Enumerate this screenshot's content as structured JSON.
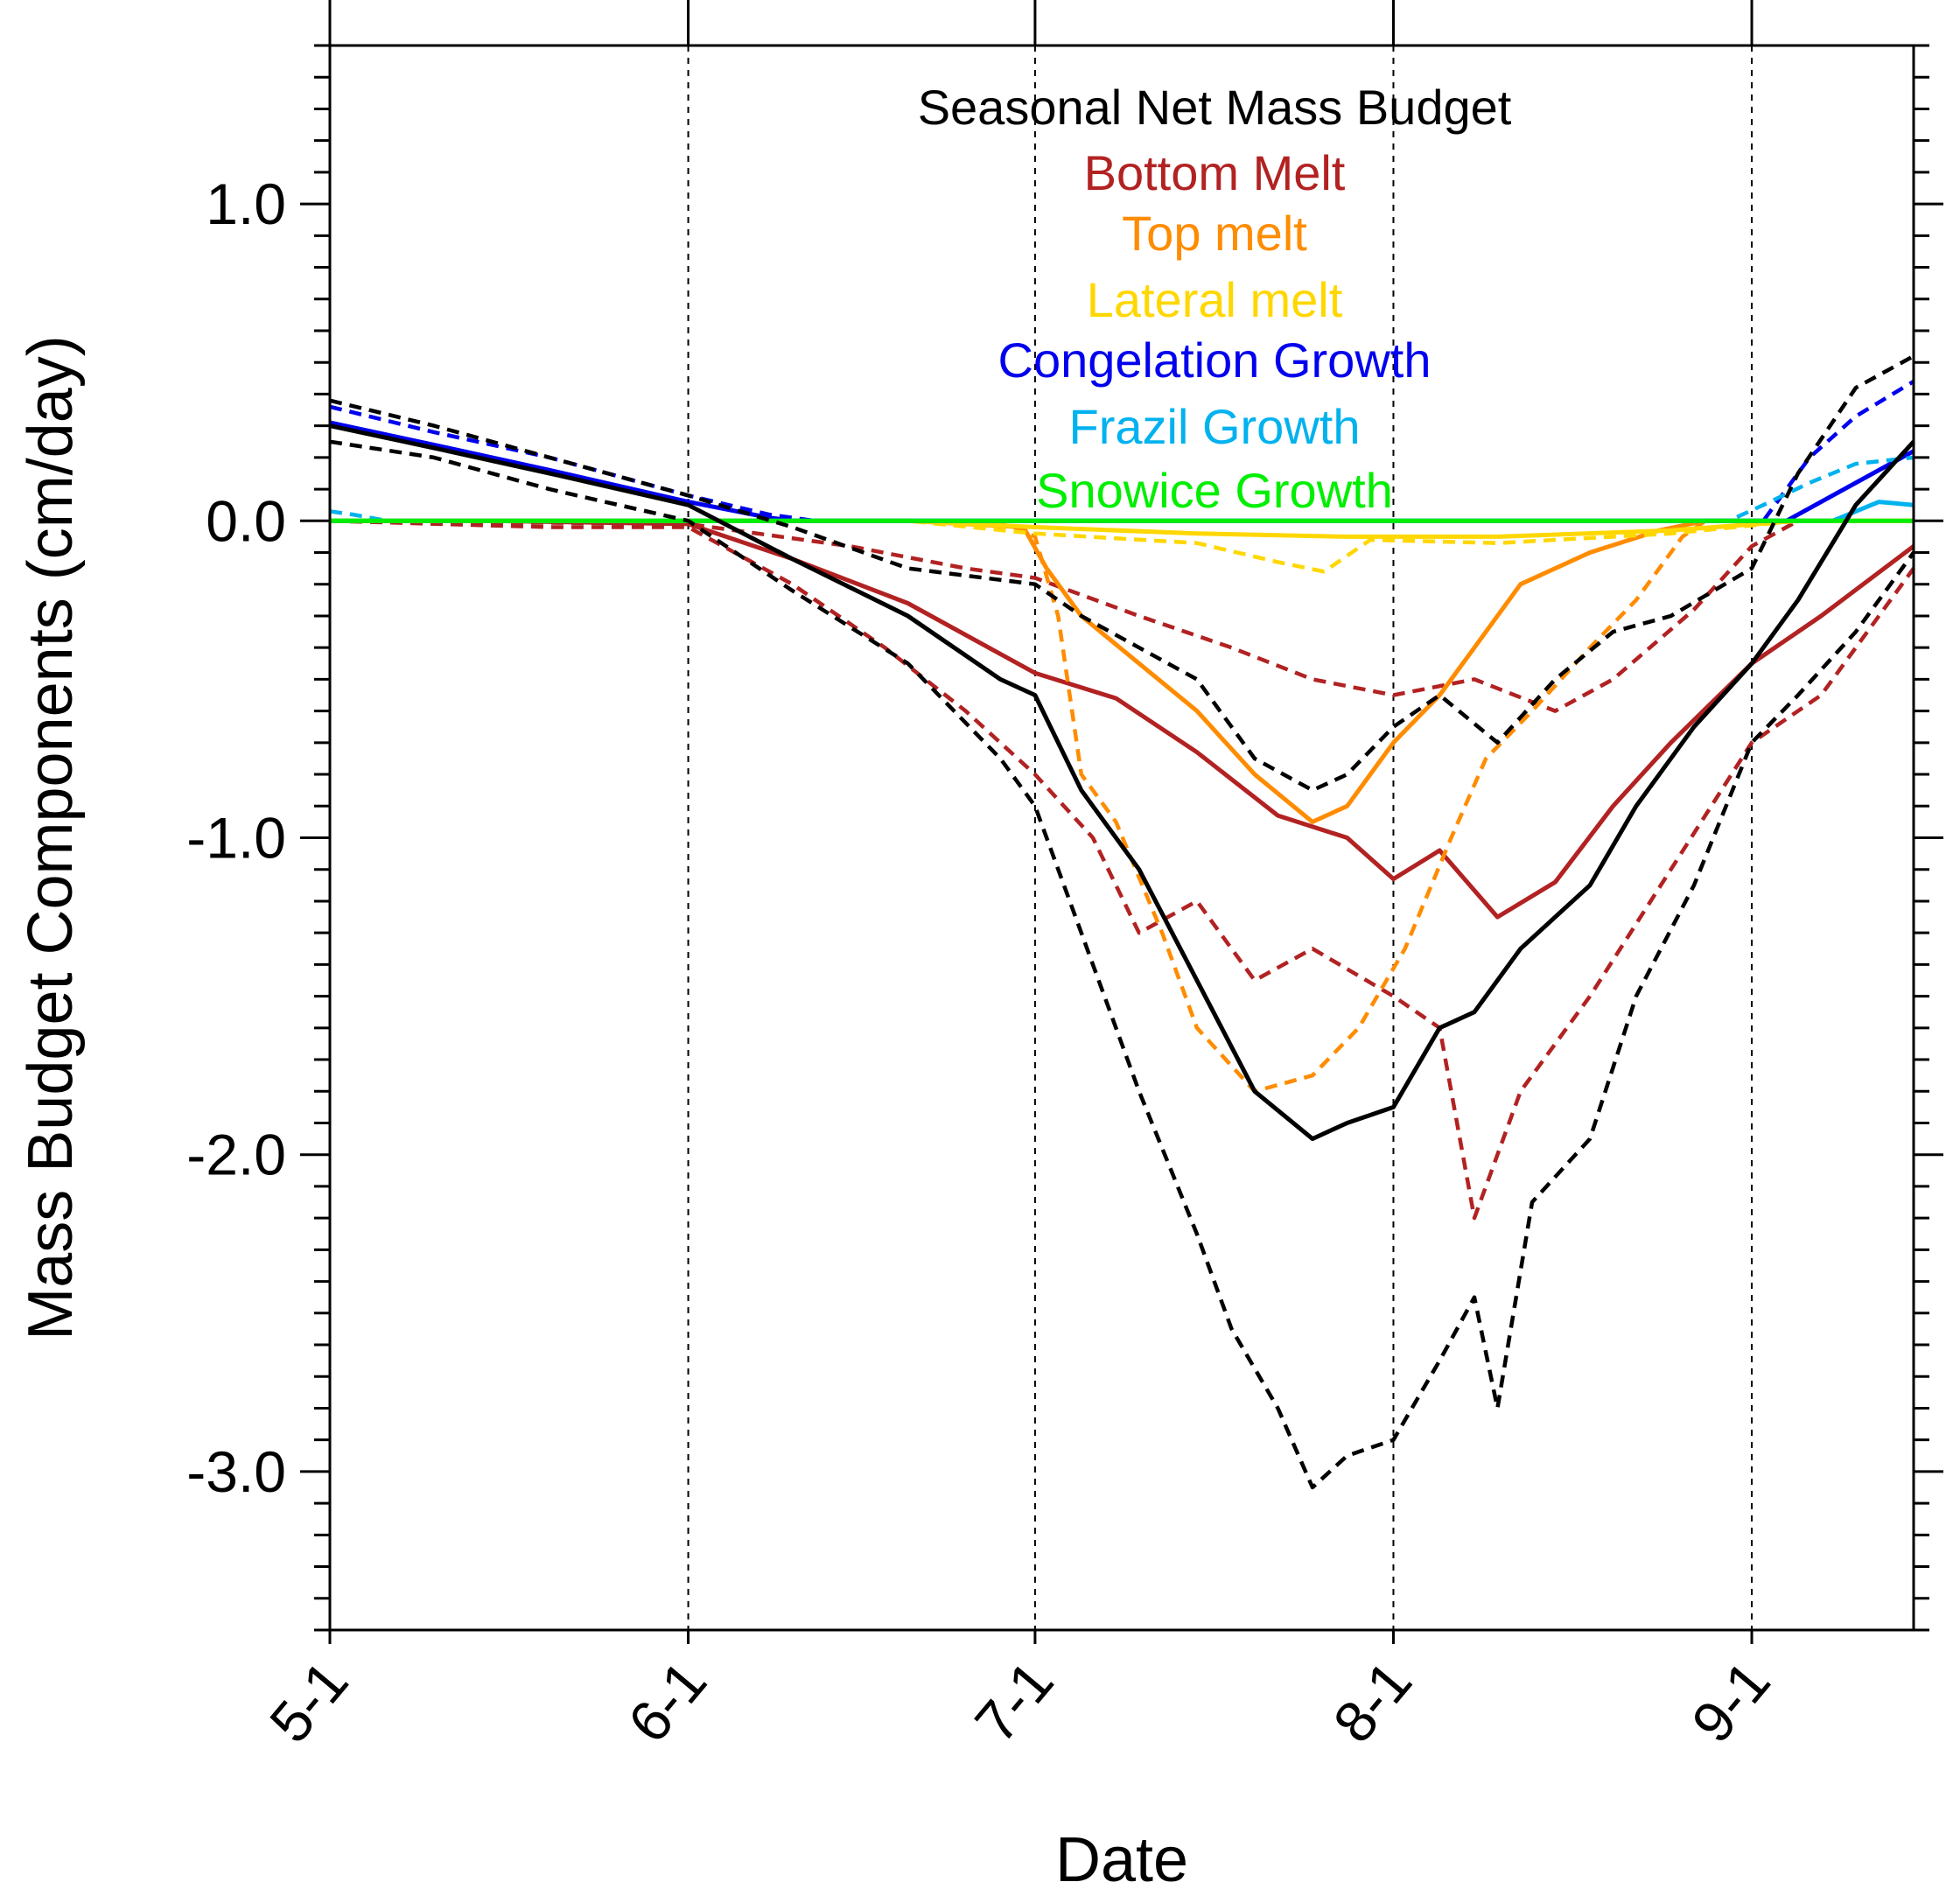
{
  "chart_data": {
    "type": "line",
    "title": "",
    "xlabel": "Date",
    "ylabel": "Mass Budget Components (cm/day)",
    "xlim": [
      "05-01",
      "09-15"
    ],
    "ylim": [
      -3.5,
      1.5
    ],
    "x_tick_labels": [
      "5-1",
      "6-1",
      "7-1",
      "8-1",
      "9-1"
    ],
    "y_tick_labels": [
      "1.0",
      "0.0",
      "-1.0",
      "-2.0",
      "-3.0"
    ],
    "y_tick_values": [
      1.0,
      0.0,
      -1.0,
      -2.0,
      -3.0
    ],
    "grid": "vertical dashed lines at month starts",
    "legend_position": "top-center",
    "legend": [
      {
        "name": "Seasonal Net Mass Budget",
        "color": "#000000"
      },
      {
        "name": "Bottom Melt",
        "color": "#b22222"
      },
      {
        "name": "Top melt",
        "color": "#ff8c00"
      },
      {
        "name": "Lateral melt",
        "color": "#ffd700"
      },
      {
        "name": "Congelation Growth",
        "color": "#0000ee"
      },
      {
        "name": "Frazil Growth",
        "color": "#00b2ee"
      },
      {
        "name": "Snowice Growth",
        "color": "#00ee00"
      }
    ],
    "series": [
      {
        "color": "#b22222",
        "style": "solid",
        "points": [
          [
            "05-01",
            0
          ],
          [
            "05-15",
            0
          ],
          [
            "06-01",
            -0.01
          ],
          [
            "06-10",
            -0.12
          ],
          [
            "06-20",
            -0.26
          ],
          [
            "07-01",
            -0.48
          ],
          [
            "07-08",
            -0.56
          ],
          [
            "07-15",
            -0.73
          ],
          [
            "07-22",
            -0.93
          ],
          [
            "07-28",
            -1.0
          ],
          [
            "08-01",
            -1.13
          ],
          [
            "08-05",
            -1.04
          ],
          [
            "08-10",
            -1.25
          ],
          [
            "08-15",
            -1.14
          ],
          [
            "08-20",
            -0.9
          ],
          [
            "08-25",
            -0.7
          ],
          [
            "09-01",
            -0.45
          ],
          [
            "09-07",
            -0.3
          ],
          [
            "09-15",
            -0.08
          ]
        ]
      },
      {
        "color": "#b22222",
        "style": "dashed",
        "points": [
          [
            "05-01",
            0
          ],
          [
            "05-20",
            -0.02
          ],
          [
            "06-01",
            -0.02
          ],
          [
            "06-10",
            -0.2
          ],
          [
            "06-18",
            -0.4
          ],
          [
            "06-25",
            -0.6
          ],
          [
            "07-01",
            -0.8
          ],
          [
            "07-06",
            -1.0
          ],
          [
            "07-10",
            -1.3
          ],
          [
            "07-15",
            -1.2
          ],
          [
            "07-20",
            -1.45
          ],
          [
            "07-25",
            -1.35
          ],
          [
            "08-01",
            -1.5
          ],
          [
            "08-05",
            -1.6
          ],
          [
            "08-08",
            -2.2
          ],
          [
            "08-12",
            -1.8
          ],
          [
            "08-18",
            -1.5
          ],
          [
            "08-25",
            -1.1
          ],
          [
            "09-01",
            -0.7
          ],
          [
            "09-07",
            -0.55
          ],
          [
            "09-15",
            -0.15
          ]
        ]
      },
      {
        "color": "#b22222",
        "style": "dashed",
        "points": [
          [
            "05-01",
            0
          ],
          [
            "06-01",
            -0.01
          ],
          [
            "06-15",
            -0.08
          ],
          [
            "06-25",
            -0.15
          ],
          [
            "07-01",
            -0.18
          ],
          [
            "07-10",
            -0.3
          ],
          [
            "07-18",
            -0.4
          ],
          [
            "07-25",
            -0.5
          ],
          [
            "08-01",
            -0.55
          ],
          [
            "08-08",
            -0.5
          ],
          [
            "08-15",
            -0.6
          ],
          [
            "08-20",
            -0.5
          ],
          [
            "08-27",
            -0.28
          ],
          [
            "09-01",
            -0.08
          ],
          [
            "09-05",
            0
          ],
          [
            "09-15",
            0
          ]
        ]
      },
      {
        "color": "#ff8c00",
        "style": "solid",
        "points": [
          [
            "05-01",
            0
          ],
          [
            "06-20",
            0
          ],
          [
            "06-30",
            -0.02
          ],
          [
            "07-02",
            -0.15
          ],
          [
            "07-05",
            -0.3
          ],
          [
            "07-10",
            -0.45
          ],
          [
            "07-15",
            -0.6
          ],
          [
            "07-20",
            -0.8
          ],
          [
            "07-25",
            -0.95
          ],
          [
            "07-28",
            -0.9
          ],
          [
            "08-01",
            -0.7
          ],
          [
            "08-05",
            -0.55
          ],
          [
            "08-08",
            -0.4
          ],
          [
            "08-12",
            -0.2
          ],
          [
            "08-18",
            -0.1
          ],
          [
            "08-24",
            -0.03
          ],
          [
            "08-28",
            0
          ],
          [
            "09-15",
            0
          ]
        ]
      },
      {
        "color": "#ff8c00",
        "style": "dashed",
        "points": [
          [
            "05-01",
            0
          ],
          [
            "06-28",
            0
          ],
          [
            "07-01",
            -0.05
          ],
          [
            "07-03",
            -0.3
          ],
          [
            "07-05",
            -0.8
          ],
          [
            "07-08",
            -0.95
          ],
          [
            "07-12",
            -1.3
          ],
          [
            "07-15",
            -1.6
          ],
          [
            "07-20",
            -1.8
          ],
          [
            "07-25",
            -1.75
          ],
          [
            "07-29",
            -1.6
          ],
          [
            "08-02",
            -1.35
          ],
          [
            "08-06",
            -1.0
          ],
          [
            "08-09",
            -0.75
          ],
          [
            "08-13",
            -0.6
          ],
          [
            "08-18",
            -0.4
          ],
          [
            "08-22",
            -0.25
          ],
          [
            "08-26",
            -0.05
          ],
          [
            "08-28",
            0
          ],
          [
            "09-15",
            0
          ]
        ]
      },
      {
        "color": "#ffd700",
        "style": "solid",
        "points": [
          [
            "05-01",
            0
          ],
          [
            "06-20",
            0
          ],
          [
            "07-01",
            -0.02
          ],
          [
            "07-15",
            -0.04
          ],
          [
            "07-28",
            -0.05
          ],
          [
            "08-10",
            -0.05
          ],
          [
            "08-25",
            -0.03
          ],
          [
            "09-05",
            0
          ],
          [
            "09-15",
            0
          ]
        ]
      },
      {
        "color": "#ffd700",
        "style": "dashed",
        "points": [
          [
            "05-01",
            0
          ],
          [
            "06-20",
            0
          ],
          [
            "07-01",
            -0.04
          ],
          [
            "07-15",
            -0.07
          ],
          [
            "07-22",
            -0.13
          ],
          [
            "07-26",
            -0.16
          ],
          [
            "07-30",
            -0.06
          ],
          [
            "08-10",
            -0.07
          ],
          [
            "08-25",
            -0.04
          ],
          [
            "09-05",
            0
          ],
          [
            "09-15",
            0
          ]
        ]
      },
      {
        "color": "#0000ee",
        "style": "solid",
        "points": [
          [
            "05-01",
            0.31
          ],
          [
            "05-10",
            0.24
          ],
          [
            "05-20",
            0.16
          ],
          [
            "06-01",
            0.06
          ],
          [
            "06-08",
            0.01
          ],
          [
            "06-10",
            0
          ],
          [
            "09-04",
            0
          ],
          [
            "09-10",
            0.12
          ],
          [
            "09-15",
            0.22
          ]
        ]
      },
      {
        "color": "#0000ee",
        "style": "dashed",
        "points": [
          [
            "05-01",
            0.36
          ],
          [
            "05-10",
            0.28
          ],
          [
            "05-20",
            0.2
          ],
          [
            "06-01",
            0.08
          ],
          [
            "06-08",
            0.02
          ],
          [
            "06-12",
            0
          ],
          [
            "09-02",
            0
          ],
          [
            "09-06",
            0.2
          ],
          [
            "09-10",
            0.33
          ],
          [
            "09-15",
            0.44
          ]
        ]
      },
      {
        "color": "#00b2ee",
        "style": "solid",
        "points": [
          [
            "05-01",
            0
          ],
          [
            "09-08",
            0
          ],
          [
            "09-12",
            0.06
          ],
          [
            "09-15",
            0.05
          ]
        ]
      },
      {
        "color": "#00b2ee",
        "style": "dashed",
        "points": [
          [
            "05-01",
            0.03
          ],
          [
            "05-03",
            0.02
          ],
          [
            "05-06",
            0
          ],
          [
            "08-30",
            0
          ],
          [
            "09-02",
            0.05
          ],
          [
            "09-06",
            0.12
          ],
          [
            "09-10",
            0.18
          ],
          [
            "09-15",
            0.2
          ]
        ]
      },
      {
        "color": "#00ee00",
        "style": "solid",
        "points": [
          [
            "05-01",
            0
          ],
          [
            "09-15",
            0
          ]
        ]
      },
      {
        "color": "#000000",
        "style": "solid",
        "points": [
          [
            "05-01",
            0.3
          ],
          [
            "05-10",
            0.23
          ],
          [
            "05-20",
            0.15
          ],
          [
            "06-01",
            0.05
          ],
          [
            "06-10",
            -0.12
          ],
          [
            "06-20",
            -0.3
          ],
          [
            "06-28",
            -0.5
          ],
          [
            "07-01",
            -0.55
          ],
          [
            "07-05",
            -0.85
          ],
          [
            "07-10",
            -1.1
          ],
          [
            "07-15",
            -1.45
          ],
          [
            "07-20",
            -1.8
          ],
          [
            "07-25",
            -1.95
          ],
          [
            "07-28",
            -1.9
          ],
          [
            "08-01",
            -1.85
          ],
          [
            "08-05",
            -1.6
          ],
          [
            "08-08",
            -1.55
          ],
          [
            "08-12",
            -1.35
          ],
          [
            "08-18",
            -1.15
          ],
          [
            "08-22",
            -0.9
          ],
          [
            "08-27",
            -0.65
          ],
          [
            "09-01",
            -0.45
          ],
          [
            "09-05",
            -0.25
          ],
          [
            "09-10",
            0.05
          ],
          [
            "09-15",
            0.25
          ]
        ]
      },
      {
        "color": "#000000",
        "style": "dashed",
        "points": [
          [
            "05-01",
            0.38
          ],
          [
            "05-10",
            0.3
          ],
          [
            "05-20",
            0.2
          ],
          [
            "06-01",
            0.08
          ],
          [
            "06-10",
            -0.02
          ],
          [
            "06-20",
            -0.15
          ],
          [
            "07-01",
            -0.2
          ],
          [
            "07-05",
            -0.3
          ],
          [
            "07-10",
            -0.4
          ],
          [
            "07-15",
            -0.5
          ],
          [
            "07-20",
            -0.75
          ],
          [
            "07-25",
            -0.85
          ],
          [
            "07-28",
            -0.8
          ],
          [
            "08-01",
            -0.65
          ],
          [
            "08-05",
            -0.55
          ],
          [
            "08-10",
            -0.7
          ],
          [
            "08-15",
            -0.5
          ],
          [
            "08-20",
            -0.35
          ],
          [
            "08-25",
            -0.3
          ],
          [
            "09-01",
            -0.15
          ],
          [
            "09-05",
            0.15
          ],
          [
            "09-10",
            0.42
          ],
          [
            "09-15",
            0.52
          ]
        ]
      },
      {
        "color": "#000000",
        "style": "dashed",
        "points": [
          [
            "05-01",
            0.25
          ],
          [
            "05-10",
            0.2
          ],
          [
            "05-20",
            0.1
          ],
          [
            "06-01",
            0
          ],
          [
            "06-10",
            -0.22
          ],
          [
            "06-20",
            -0.45
          ],
          [
            "06-28",
            -0.75
          ],
          [
            "07-01",
            -0.9
          ],
          [
            "07-05",
            -1.3
          ],
          [
            "07-10",
            -1.8
          ],
          [
            "07-15",
            -2.25
          ],
          [
            "07-18",
            -2.55
          ],
          [
            "07-22",
            -2.8
          ],
          [
            "07-25",
            -3.05
          ],
          [
            "07-28",
            -2.95
          ],
          [
            "08-01",
            -2.9
          ],
          [
            "08-05",
            -2.65
          ],
          [
            "08-08",
            -2.45
          ],
          [
            "08-10",
            -2.8
          ],
          [
            "08-13",
            -2.15
          ],
          [
            "08-18",
            -1.95
          ],
          [
            "08-22",
            -1.5
          ],
          [
            "08-27",
            -1.15
          ],
          [
            "09-01",
            -0.7
          ],
          [
            "09-05",
            -0.55
          ],
          [
            "09-10",
            -0.35
          ],
          [
            "09-15",
            -0.1
          ]
        ]
      }
    ]
  }
}
